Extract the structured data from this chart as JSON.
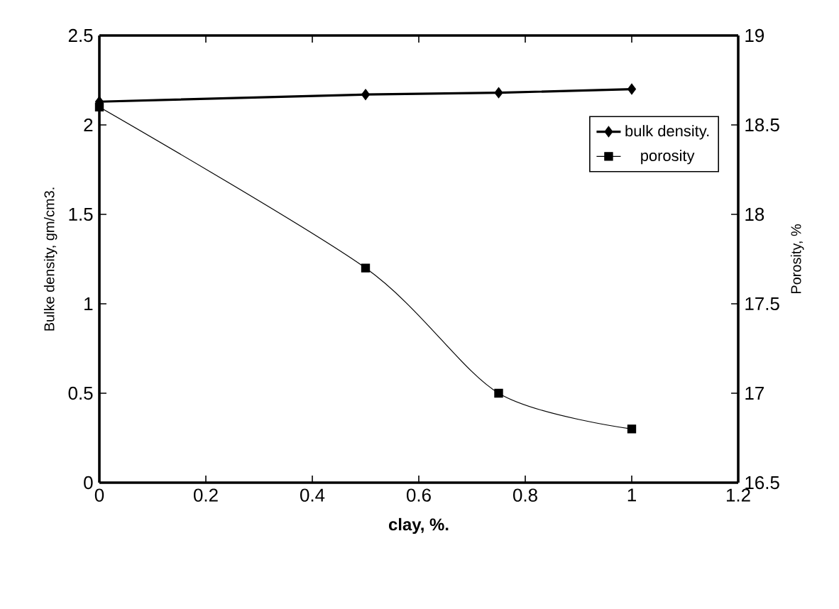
{
  "chart_data": {
    "type": "line",
    "xlabel": "clay, %.",
    "ylabel": "Bulke density, gm/cm3.",
    "y2label": "Porosity, %",
    "x": [
      0,
      0.5,
      0.75,
      1
    ],
    "xlim": [
      0,
      1.2
    ],
    "xticks": [
      0,
      0.2,
      0.4,
      0.6,
      0.8,
      1,
      1.2
    ],
    "ylim": [
      0,
      2.5
    ],
    "yticks": [
      0,
      0.5,
      1,
      1.5,
      2,
      2.5
    ],
    "y2lim": [
      16.5,
      19
    ],
    "y2ticks": [
      16.5,
      17,
      17.5,
      18,
      18.5,
      19
    ],
    "grid": false,
    "legend": "right",
    "line_style": "solid",
    "series": [
      {
        "name": "bulk density.",
        "color": "#000000",
        "values": [
          2.13,
          2.17,
          2.18,
          2.2
        ],
        "marker": "diamond"
      },
      {
        "name": "porosity",
        "color": "#000000",
        "values": [
          18.6,
          17.7,
          17.0,
          16.8
        ],
        "marker": "square",
        "axis": "y2"
      }
    ]
  }
}
